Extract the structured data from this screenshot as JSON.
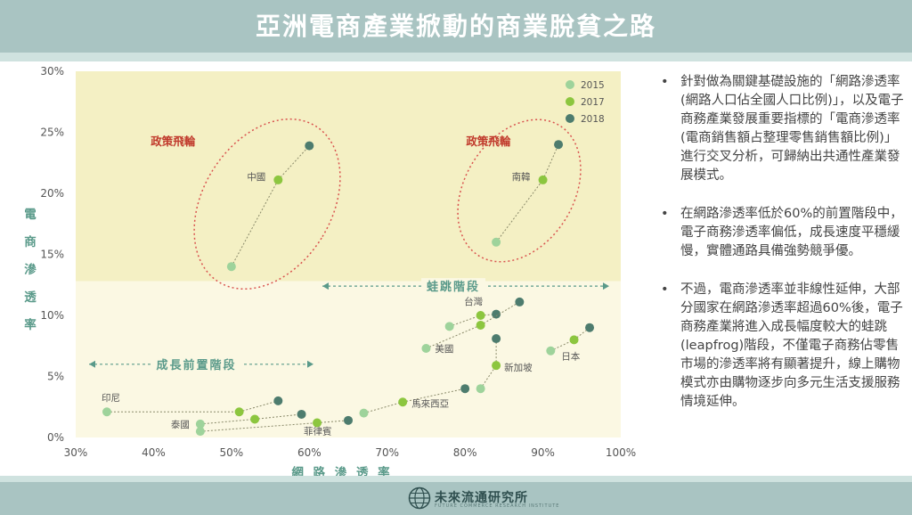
{
  "header": {
    "title": "亞洲電商產業掀動的商業脫貧之路"
  },
  "footer": {
    "logo_text": "未來流通研究所",
    "logo_subtext": "FUTURE COMMERCE RESEARCH INSTITUTE"
  },
  "bullets": [
    {
      "marker": "•",
      "text": "針對做為關鍵基礎設施的「網路滲透率(網路人口佔全國人口比例)」，以及電子商務產業發展重要指標的「電商滲透率(電商銷售額占整理零售銷售額比例)」進行交叉分析，可歸納出共通性產業發展模式。"
    },
    {
      "marker": "•",
      "text": "在網路滲透率低於60%的前置階段中，電子商務滲透率偏低，成長速度平穩緩慢，實體通路具備強勢競爭優。"
    },
    {
      "marker": "•",
      "text": "不過，電商滲透率並非線性延伸，大部分國家在網路滲透率超過60%後，電子商務產業將進入成長幅度較大的蛙跳(leapfrog)階段，不僅電子商務佔零售市場的滲透率將有顯著提升，線上購物模式亦由購物逐步向多元生活支援服務情境延伸。"
    }
  ],
  "colors": {
    "y2015": "#9ed39b",
    "y2017": "#8cc63f",
    "y2018": "#4d7c6e",
    "upper_zone": "#f4f0c4",
    "lower_zone": "#fbf8e3",
    "circle": "#d9534f",
    "accent_text": "#5a9a8a",
    "alert_text": "#c0392b"
  },
  "chart_data": {
    "type": "scatter",
    "xlabel": "網 路 滲 透 率",
    "ylabel": "電商滲透率",
    "xlim": [
      30,
      100
    ],
    "ylim": [
      0,
      30
    ],
    "x_ticks": [
      "30%",
      "40%",
      "50%",
      "60%",
      "70%",
      "80%",
      "90%",
      "100%"
    ],
    "y_ticks": [
      "0%",
      "5%",
      "10%",
      "15%",
      "20%",
      "25%",
      "30%"
    ],
    "legend_position": "top-right",
    "legend": [
      "2015",
      "2017",
      "2018"
    ],
    "zone_boundary_y": 12.8,
    "series": [
      {
        "name": "中國",
        "points": [
          [
            50,
            14
          ],
          [
            56,
            21.1
          ],
          [
            60,
            23.9
          ]
        ]
      },
      {
        "name": "南韓",
        "points": [
          [
            84,
            16
          ],
          [
            90,
            21.1
          ],
          [
            92,
            24
          ]
        ]
      },
      {
        "name": "台灣",
        "points": [
          [
            78,
            9.1
          ],
          [
            82,
            10
          ],
          [
            84,
            10.1
          ]
        ]
      },
      {
        "name": "美國",
        "points": [
          [
            75,
            7.3
          ],
          [
            82,
            9.2
          ],
          [
            87,
            11.1
          ]
        ]
      },
      {
        "name": "新加坡",
        "points": [
          [
            82,
            4
          ],
          [
            84,
            5.9
          ],
          [
            84,
            8.1
          ]
        ]
      },
      {
        "name": "日本",
        "points": [
          [
            91,
            7.1
          ],
          [
            94,
            8
          ],
          [
            96,
            9
          ]
        ]
      },
      {
        "name": "印尼",
        "points": [
          [
            34,
            2.1
          ],
          [
            51,
            2.1
          ],
          [
            56,
            3
          ]
        ]
      },
      {
        "name": "泰國",
        "points": [
          [
            46,
            1.1
          ],
          [
            53,
            1.5
          ],
          [
            59,
            1.9
          ]
        ]
      },
      {
        "name": "菲律賓",
        "points": [
          [
            46,
            0.5
          ],
          [
            61,
            1.2
          ],
          [
            65,
            1.4
          ]
        ]
      },
      {
        "name": "馬來西亞",
        "points": [
          [
            67,
            2
          ],
          [
            72,
            2.9
          ],
          [
            80,
            4
          ]
        ]
      }
    ],
    "annotations": [
      {
        "text": "政策飛輪",
        "x": 42.5,
        "y": 24.3
      },
      {
        "text": "政策飛輪",
        "x": 83,
        "y": 24.3
      },
      {
        "text": "蛙跳階段",
        "x": 78.5,
        "y": 12.4
      },
      {
        "text": "成長前置階段",
        "x": 45.5,
        "y": 6
      }
    ]
  }
}
